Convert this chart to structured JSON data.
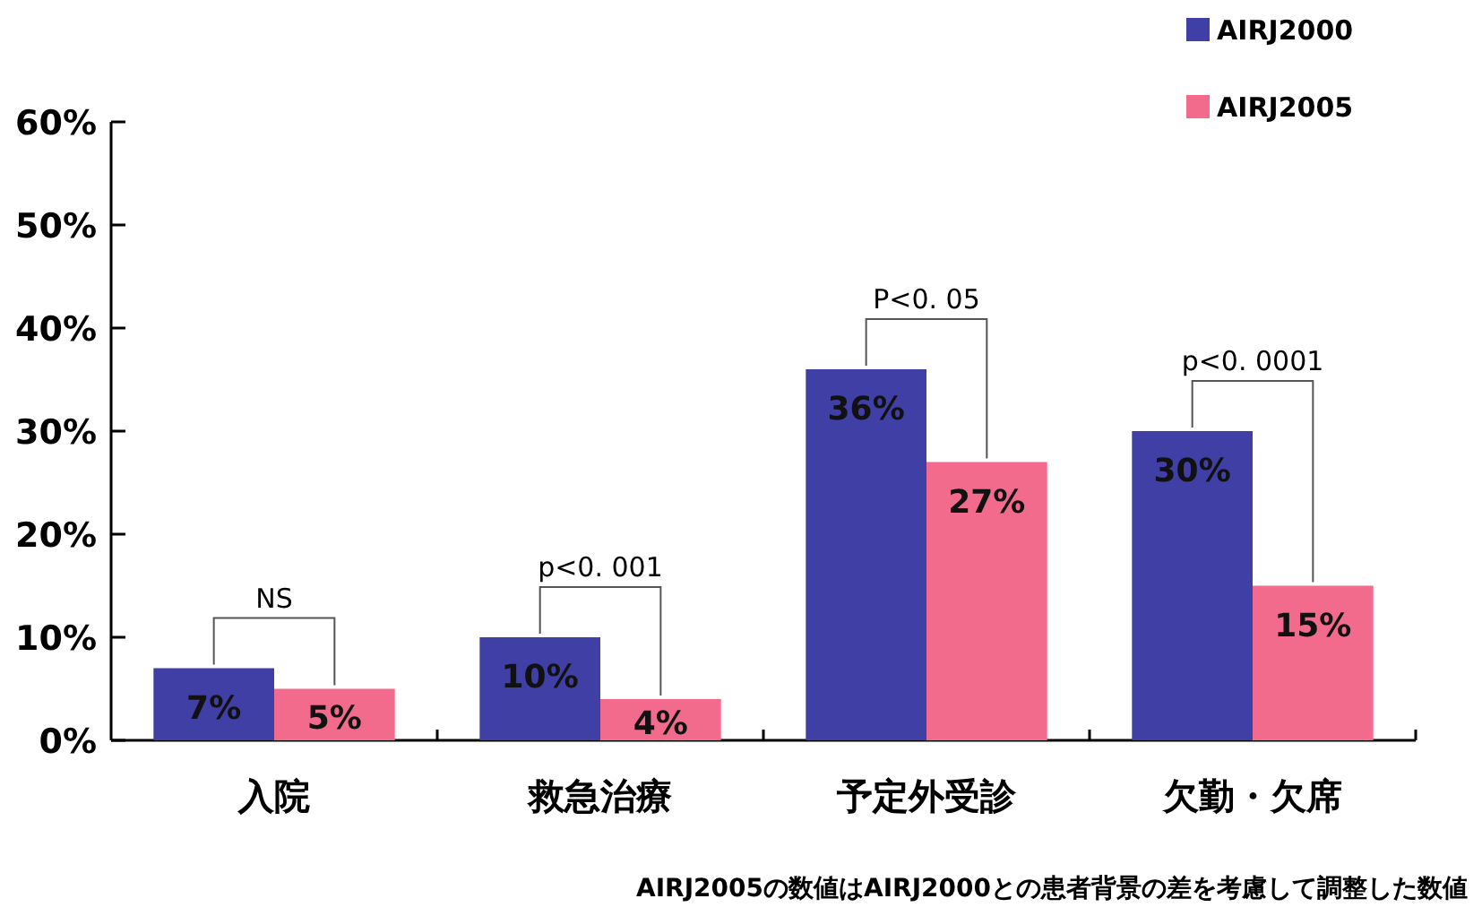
{
  "chart_data": {
    "type": "bar",
    "categories": [
      "入院",
      "救急治療",
      "予定外受診",
      "欠勤・欠席"
    ],
    "series": [
      {
        "name": "AIRJ2000",
        "color": "#3f3fa6",
        "values": [
          7,
          10,
          36,
          30
        ],
        "value_labels": [
          "7%",
          "10%",
          "36%",
          "30%"
        ]
      },
      {
        "name": "AIRJ2005",
        "color": "#f26b8c",
        "values": [
          5,
          4,
          27,
          15
        ],
        "value_labels": [
          "5%",
          "4%",
          "27%",
          "15%"
        ]
      }
    ],
    "ylim": [
      0,
      60
    ],
    "yticks": [
      {
        "value": 0,
        "label": "0%"
      },
      {
        "value": 10,
        "label": "10%"
      },
      {
        "value": 20,
        "label": "20%"
      },
      {
        "value": 30,
        "label": "30%"
      },
      {
        "value": 40,
        "label": "40%"
      },
      {
        "value": 50,
        "label": "50%"
      },
      {
        "value": 60,
        "label": "60%"
      }
    ],
    "annotations": [
      "NS",
      "p<0. 001",
      "P<0. 05",
      "p<0. 0001",
      "AIRJ2005の数値はAIRJ2000との患者背景の差を考慮して調整した数値"
    ],
    "legend": "top right",
    "grid": false
  }
}
